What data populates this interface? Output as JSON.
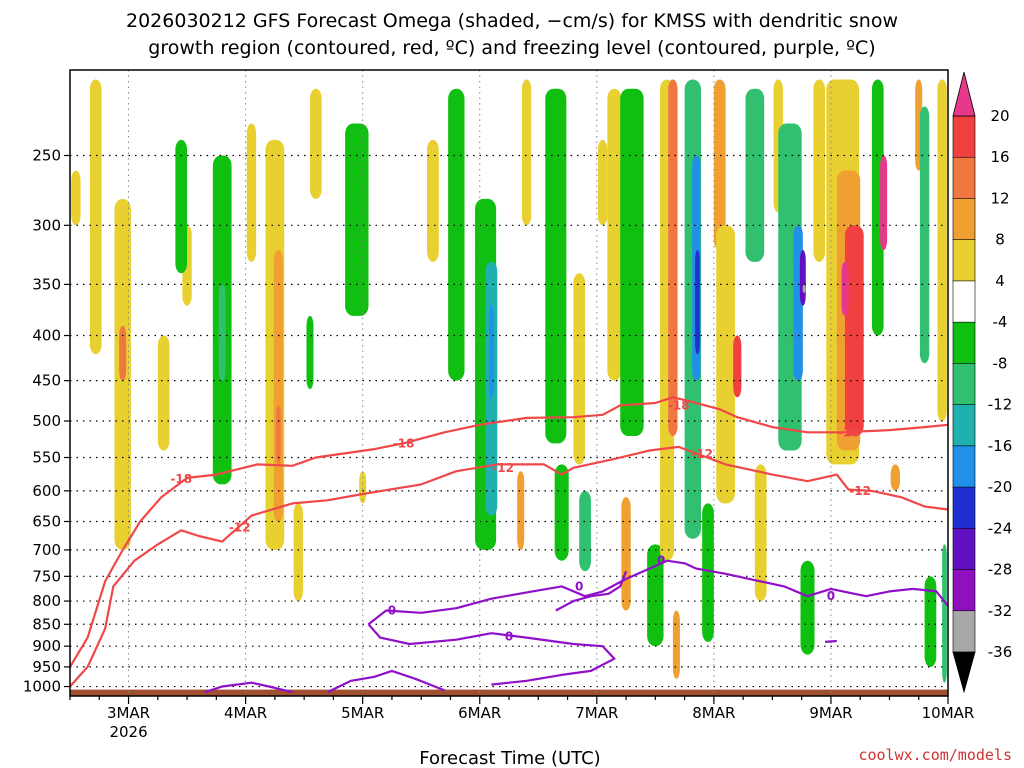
{
  "chart_data": {
    "type": "heatmap",
    "title_line1": "2026030212 GFS Forecast Omega (shaded, −cm/s) for KMSS with dendritic snow",
    "title_line2": "growth region (contoured, red, ºC) and freezing level (contoured, purple, ºC)",
    "xlabel": "Forecast Time (UTC)",
    "ylabel": "",
    "credit": "coolwx.com/models",
    "x_range_days": [
      0,
      7.5
    ],
    "x_ticks": [
      {
        "day": 0.5,
        "label": "3MAR",
        "sublabel": "2026"
      },
      {
        "day": 1.5,
        "label": "4MAR",
        "sublabel": ""
      },
      {
        "day": 2.5,
        "label": "5MAR",
        "sublabel": ""
      },
      {
        "day": 3.5,
        "label": "6MAR",
        "sublabel": ""
      },
      {
        "day": 4.5,
        "label": "7MAR",
        "sublabel": ""
      },
      {
        "day": 5.5,
        "label": "8MAR",
        "sublabel": ""
      },
      {
        "day": 6.5,
        "label": "9MAR",
        "sublabel": ""
      },
      {
        "day": 7.5,
        "label": "10MAR",
        "sublabel": ""
      }
    ],
    "y_pressure_levels": [
      250,
      300,
      350,
      400,
      450,
      500,
      550,
      600,
      650,
      700,
      750,
      800,
      850,
      900,
      950,
      1000
    ],
    "y_top_hpa": 200,
    "y_bottom_hpa": 1025,
    "colorbar": {
      "ticks": [
        "20",
        "16",
        "12",
        "8",
        "4",
        "-4",
        "-8",
        "-12",
        "-16",
        "-20",
        "-24",
        "-28",
        "-32",
        "-36"
      ],
      "bins": [
        {
          "lo": 20,
          "hi": 24,
          "color": "#e8388c"
        },
        {
          "lo": 16,
          "hi": 20,
          "color": "#f04040"
        },
        {
          "lo": 12,
          "hi": 16,
          "color": "#f07840"
        },
        {
          "lo": 8,
          "hi": 12,
          "color": "#f0a030"
        },
        {
          "lo": 4,
          "hi": 8,
          "color": "#e8d030"
        },
        {
          "lo": 0,
          "hi": 4,
          "color": "#f0f060"
        },
        {
          "lo": -4,
          "hi": 4,
          "color": "#ffffff"
        },
        {
          "lo": -8,
          "hi": -4,
          "color": "#10c010"
        },
        {
          "lo": -12,
          "hi": -8,
          "color": "#30c070"
        },
        {
          "lo": -16,
          "hi": -12,
          "color": "#20b0b0"
        },
        {
          "lo": -20,
          "hi": -16,
          "color": "#2090e8"
        },
        {
          "lo": -24,
          "hi": -20,
          "color": "#2030d0"
        },
        {
          "lo": -28,
          "hi": -24,
          "color": "#6010c0"
        },
        {
          "lo": -32,
          "hi": -28,
          "color": "#9010c0"
        },
        {
          "lo": -36,
          "hi": -32,
          "color": "#a8a8a8"
        },
        {
          "lo": -40,
          "hi": -36,
          "color": "#000000"
        }
      ]
    },
    "colors": {
      "dgz": "#f04848",
      "freezing": "#9010c8",
      "ground": "#a05030"
    },
    "omega_blobs": [
      {
        "day": 0.22,
        "p_top": 205,
        "p_bot": 420,
        "halfw": 0.05,
        "value": 4
      },
      {
        "day": 0.05,
        "p_top": 260,
        "p_bot": 300,
        "halfw": 0.04,
        "value": 4
      },
      {
        "day": 0.45,
        "p_top": 280,
        "p_bot": 700,
        "halfw": 0.07,
        "value": 5
      },
      {
        "day": 0.45,
        "p_top": 390,
        "p_bot": 450,
        "halfw": 0.03,
        "value": 12
      },
      {
        "day": 0.8,
        "p_top": 400,
        "p_bot": 540,
        "halfw": 0.05,
        "value": 5
      },
      {
        "day": 1.0,
        "p_top": 300,
        "p_bot": 370,
        "halfw": 0.04,
        "value": 5
      },
      {
        "day": 0.95,
        "p_top": 240,
        "p_bot": 340,
        "halfw": 0.05,
        "value": -5
      },
      {
        "day": 1.3,
        "p_top": 250,
        "p_bot": 590,
        "halfw": 0.08,
        "value": -6
      },
      {
        "day": 1.3,
        "p_top": 350,
        "p_bot": 450,
        "halfw": 0.03,
        "value": -10
      },
      {
        "day": 1.55,
        "p_top": 230,
        "p_bot": 330,
        "halfw": 0.04,
        "value": 4
      },
      {
        "day": 1.75,
        "p_top": 240,
        "p_bot": 700,
        "halfw": 0.08,
        "value": 6
      },
      {
        "day": 1.78,
        "p_top": 320,
        "p_bot": 650,
        "halfw": 0.04,
        "value": 10
      },
      {
        "day": 1.78,
        "p_top": 480,
        "p_bot": 560,
        "halfw": 0.02,
        "value": 14
      },
      {
        "day": 2.1,
        "p_top": 210,
        "p_bot": 280,
        "halfw": 0.05,
        "value": 4
      },
      {
        "day": 2.05,
        "p_top": 380,
        "p_bot": 460,
        "halfw": 0.03,
        "value": -5
      },
      {
        "day": 1.95,
        "p_top": 620,
        "p_bot": 800,
        "halfw": 0.04,
        "value": 5
      },
      {
        "day": 2.45,
        "p_top": 230,
        "p_bot": 380,
        "halfw": 0.1,
        "value": -6
      },
      {
        "day": 2.5,
        "p_top": 570,
        "p_bot": 620,
        "halfw": 0.03,
        "value": 5
      },
      {
        "day": 3.1,
        "p_top": 240,
        "p_bot": 330,
        "halfw": 0.05,
        "value": 4
      },
      {
        "day": 3.3,
        "p_top": 210,
        "p_bot": 450,
        "halfw": 0.07,
        "value": -6
      },
      {
        "day": 3.55,
        "p_top": 280,
        "p_bot": 700,
        "halfw": 0.09,
        "value": -7
      },
      {
        "day": 3.6,
        "p_top": 330,
        "p_bot": 640,
        "halfw": 0.05,
        "value": -12
      },
      {
        "day": 3.6,
        "p_top": 370,
        "p_bot": 470,
        "halfw": 0.02,
        "value": -18
      },
      {
        "day": 3.85,
        "p_top": 570,
        "p_bot": 700,
        "halfw": 0.03,
        "value": 8
      },
      {
        "day": 3.9,
        "p_top": 205,
        "p_bot": 300,
        "halfw": 0.04,
        "value": 4
      },
      {
        "day": 4.15,
        "p_top": 210,
        "p_bot": 530,
        "halfw": 0.09,
        "value": -6
      },
      {
        "day": 4.35,
        "p_top": 340,
        "p_bot": 560,
        "halfw": 0.05,
        "value": 4
      },
      {
        "day": 4.2,
        "p_top": 560,
        "p_bot": 720,
        "halfw": 0.06,
        "value": -6
      },
      {
        "day": 4.4,
        "p_top": 600,
        "p_bot": 740,
        "halfw": 0.05,
        "value": -10
      },
      {
        "day": 4.55,
        "p_top": 240,
        "p_bot": 300,
        "halfw": 0.04,
        "value": 4
      },
      {
        "day": 4.65,
        "p_top": 210,
        "p_bot": 450,
        "halfw": 0.06,
        "value": 5
      },
      {
        "day": 4.75,
        "p_top": 610,
        "p_bot": 820,
        "halfw": 0.04,
        "value": 8
      },
      {
        "day": 4.8,
        "p_top": 210,
        "p_bot": 520,
        "halfw": 0.1,
        "value": -6
      },
      {
        "day": 5.0,
        "p_top": 690,
        "p_bot": 900,
        "halfw": 0.07,
        "value": -6
      },
      {
        "day": 5.1,
        "p_top": 205,
        "p_bot": 720,
        "halfw": 0.06,
        "value": 5
      },
      {
        "day": 5.15,
        "p_top": 205,
        "p_bot": 520,
        "halfw": 0.04,
        "value": 12
      },
      {
        "day": 5.18,
        "p_top": 820,
        "p_bot": 980,
        "halfw": 0.03,
        "value": 10
      },
      {
        "day": 5.32,
        "p_top": 205,
        "p_bot": 680,
        "halfw": 0.07,
        "value": -8
      },
      {
        "day": 5.35,
        "p_top": 250,
        "p_bot": 450,
        "halfw": 0.035,
        "value": -16
      },
      {
        "day": 5.36,
        "p_top": 320,
        "p_bot": 420,
        "halfw": 0.02,
        "value": -22
      },
      {
        "day": 5.45,
        "p_top": 620,
        "p_bot": 890,
        "halfw": 0.05,
        "value": -6
      },
      {
        "day": 5.55,
        "p_top": 205,
        "p_bot": 320,
        "halfw": 0.05,
        "value": 8
      },
      {
        "day": 5.6,
        "p_top": 300,
        "p_bot": 620,
        "halfw": 0.08,
        "value": 5
      },
      {
        "day": 5.7,
        "p_top": 400,
        "p_bot": 470,
        "halfw": 0.035,
        "value": 16
      },
      {
        "day": 5.85,
        "p_top": 210,
        "p_bot": 330,
        "halfw": 0.08,
        "value": -8
      },
      {
        "day": 5.9,
        "p_top": 560,
        "p_bot": 800,
        "halfw": 0.05,
        "value": 5
      },
      {
        "day": 6.05,
        "p_top": 205,
        "p_bot": 290,
        "halfw": 0.04,
        "value": 4
      },
      {
        "day": 6.15,
        "p_top": 230,
        "p_bot": 540,
        "halfw": 0.1,
        "value": -8
      },
      {
        "day": 6.22,
        "p_top": 300,
        "p_bot": 450,
        "halfw": 0.04,
        "value": -16
      },
      {
        "day": 6.26,
        "p_top": 320,
        "p_bot": 370,
        "halfw": 0.025,
        "value": -24
      },
      {
        "day": 6.27,
        "p_top": 350,
        "p_bot": 358,
        "halfw": 0.012,
        "value": -34
      },
      {
        "day": 6.3,
        "p_top": 720,
        "p_bot": 920,
        "halfw": 0.06,
        "value": -6
      },
      {
        "day": 6.4,
        "p_top": 205,
        "p_bot": 330,
        "halfw": 0.05,
        "value": 4
      },
      {
        "day": 6.6,
        "p_top": 205,
        "p_bot": 560,
        "halfw": 0.14,
        "value": 6
      },
      {
        "day": 6.65,
        "p_top": 260,
        "p_bot": 540,
        "halfw": 0.1,
        "value": 11
      },
      {
        "day": 6.7,
        "p_top": 300,
        "p_bot": 520,
        "halfw": 0.08,
        "value": 17
      },
      {
        "day": 6.62,
        "p_top": 330,
        "p_bot": 380,
        "halfw": 0.03,
        "value": 21
      },
      {
        "day": 6.9,
        "p_top": 205,
        "p_bot": 400,
        "halfw": 0.05,
        "value": -6
      },
      {
        "day": 6.95,
        "p_top": 250,
        "p_bot": 320,
        "halfw": 0.03,
        "value": 22
      },
      {
        "day": 7.05,
        "p_top": 560,
        "p_bot": 600,
        "halfw": 0.04,
        "value": 8
      },
      {
        "day": 7.25,
        "p_top": 205,
        "p_bot": 260,
        "halfw": 0.03,
        "value": 8
      },
      {
        "day": 7.3,
        "p_top": 220,
        "p_bot": 430,
        "halfw": 0.04,
        "value": -8
      },
      {
        "day": 7.35,
        "p_top": 750,
        "p_bot": 950,
        "halfw": 0.05,
        "value": -6
      },
      {
        "day": 7.45,
        "p_top": 205,
        "p_bot": 500,
        "halfw": 0.04,
        "value": 5
      },
      {
        "day": 7.47,
        "p_top": 690,
        "p_bot": 990,
        "halfw": 0.02,
        "value": -8
      }
    ],
    "dgz_contours": [
      {
        "label": "-18",
        "points": [
          [
            0,
            950
          ],
          [
            0.15,
            880
          ],
          [
            0.3,
            760
          ],
          [
            0.45,
            700
          ],
          [
            0.6,
            650
          ],
          [
            0.78,
            610
          ],
          [
            1.0,
            580
          ],
          [
            1.25,
            575
          ],
          [
            1.6,
            560
          ],
          [
            1.9,
            562
          ],
          [
            2.1,
            550
          ],
          [
            2.6,
            538
          ],
          [
            2.85,
            530
          ],
          [
            3.2,
            515
          ],
          [
            3.5,
            505
          ],
          [
            3.9,
            496
          ],
          [
            4.3,
            495
          ],
          [
            4.55,
            492
          ],
          [
            4.7,
            480
          ],
          [
            5.0,
            477
          ],
          [
            5.15,
            470
          ],
          [
            5.3,
            475
          ],
          [
            5.55,
            485
          ],
          [
            5.7,
            495
          ],
          [
            6.0,
            508
          ],
          [
            6.3,
            515
          ],
          [
            6.6,
            515
          ],
          [
            7.0,
            512
          ],
          [
            7.3,
            508
          ],
          [
            7.5,
            505
          ]
        ],
        "label_at": [
          [
            0.95,
            582
          ],
          [
            2.85,
            530
          ],
          [
            5.2,
            480
          ],
          [
            6.65,
            515
          ]
        ]
      },
      {
        "label": "-12",
        "points": [
          [
            0,
            1000
          ],
          [
            0.15,
            950
          ],
          [
            0.3,
            860
          ],
          [
            0.37,
            770
          ],
          [
            0.55,
            720
          ],
          [
            0.75,
            690
          ],
          [
            0.95,
            665
          ],
          [
            1.1,
            675
          ],
          [
            1.3,
            685
          ],
          [
            1.55,
            640
          ],
          [
            1.9,
            620
          ],
          [
            2.2,
            615
          ],
          [
            2.5,
            605
          ],
          [
            3.0,
            590
          ],
          [
            3.3,
            570
          ],
          [
            3.65,
            560
          ],
          [
            4.05,
            560
          ],
          [
            4.2,
            575
          ],
          [
            4.3,
            565
          ],
          [
            4.65,
            552
          ],
          [
            4.95,
            540
          ],
          [
            5.2,
            535
          ],
          [
            5.6,
            560
          ],
          [
            6.0,
            575
          ],
          [
            6.3,
            585
          ],
          [
            6.55,
            575
          ],
          [
            6.65,
            598
          ],
          [
            6.85,
            600
          ],
          [
            7.1,
            610
          ],
          [
            7.3,
            625
          ],
          [
            7.5,
            630
          ]
        ],
        "label_at": [
          [
            1.45,
            660
          ],
          [
            3.7,
            565
          ],
          [
            5.4,
            545
          ],
          [
            6.75,
            600
          ]
        ]
      }
    ],
    "freezing_contours": [
      {
        "label": "0",
        "points": [
          [
            2.55,
            850
          ],
          [
            2.7,
            820
          ],
          [
            3.0,
            825
          ],
          [
            3.3,
            815
          ],
          [
            3.6,
            795
          ],
          [
            3.95,
            780
          ],
          [
            4.2,
            770
          ],
          [
            4.4,
            790
          ],
          [
            4.55,
            780
          ],
          [
            4.75,
            755
          ],
          [
            4.95,
            735
          ],
          [
            5.1,
            720
          ],
          [
            5.25,
            725
          ],
          [
            5.35,
            735
          ],
          [
            5.6,
            745
          ],
          [
            5.9,
            760
          ],
          [
            6.1,
            770
          ],
          [
            6.3,
            790
          ],
          [
            6.5,
            775
          ],
          [
            6.8,
            790
          ],
          [
            7.0,
            780
          ],
          [
            7.2,
            775
          ],
          [
            7.4,
            780
          ],
          [
            7.5,
            810
          ]
        ],
        "label_at": [
          [
            2.75,
            820
          ],
          [
            5.05,
            720
          ],
          [
            6.5,
            790
          ]
        ]
      },
      {
        "label": "0",
        "points": [
          [
            2.55,
            850
          ],
          [
            2.65,
            880
          ],
          [
            2.9,
            895
          ],
          [
            3.3,
            885
          ],
          [
            3.6,
            870
          ],
          [
            3.9,
            880
          ],
          [
            4.3,
            895
          ],
          [
            4.55,
            900
          ],
          [
            4.65,
            930
          ],
          [
            4.45,
            960
          ],
          [
            4.2,
            970
          ],
          [
            3.9,
            985
          ],
          [
            3.6,
            995
          ]
        ],
        "label_at": [
          [
            3.75,
            878
          ]
        ]
      },
      {
        "label": "0",
        "points": [
          [
            4.15,
            820
          ],
          [
            4.3,
            800
          ],
          [
            4.45,
            790
          ],
          [
            4.6,
            785
          ],
          [
            4.7,
            770
          ],
          [
            4.75,
            740
          ]
        ],
        "label_at": [
          [
            4.35,
            770
          ]
        ]
      },
      {
        "label": "",
        "points": [
          [
            1.15,
            1015
          ],
          [
            1.3,
            1000
          ],
          [
            1.55,
            990
          ],
          [
            1.7,
            1000
          ],
          [
            1.9,
            1015
          ]
        ],
        "label_at": []
      },
      {
        "label": "",
        "points": [
          [
            2.2,
            1015
          ],
          [
            2.4,
            985
          ],
          [
            2.6,
            975
          ],
          [
            2.75,
            960
          ],
          [
            2.95,
            980
          ],
          [
            3.2,
            1010
          ]
        ],
        "label_at": []
      },
      {
        "label": "",
        "points": [
          [
            6.45,
            890
          ],
          [
            6.55,
            888
          ]
        ],
        "label_at": []
      }
    ]
  }
}
